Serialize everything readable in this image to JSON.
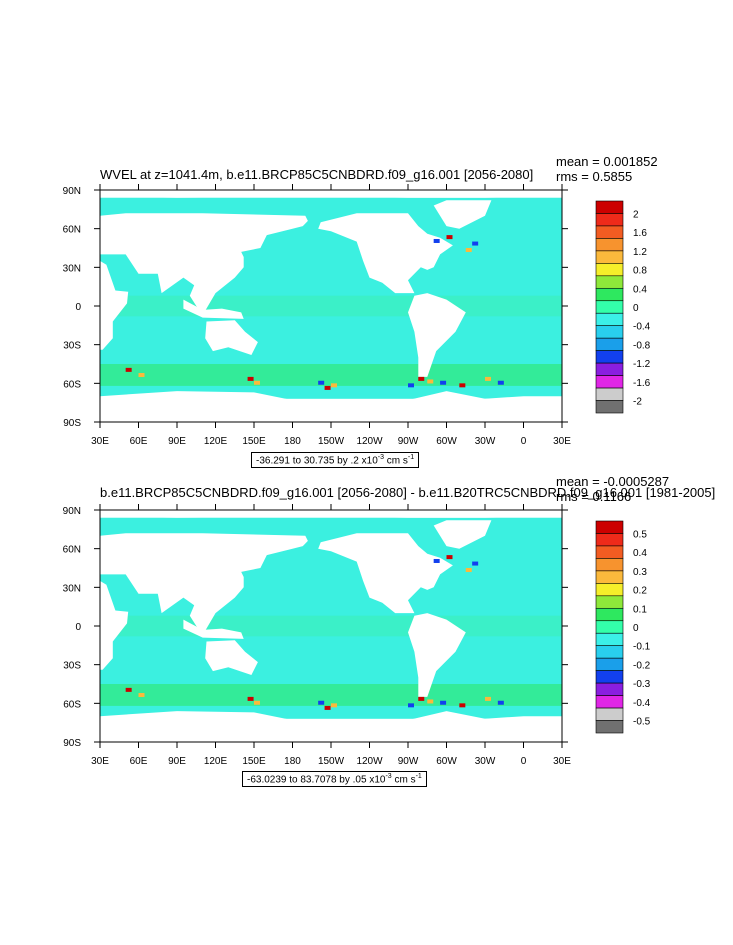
{
  "panels": [
    {
      "title": "WVEL at z=1041.4m, b.e11.BRCP85C5CNBDRD.f09_g16.001 [2056-2080]",
      "mean": "mean = 0.001852",
      "rms": "rms = 0.5855",
      "range_text": "-36.291 to 30.735 by .2 x10",
      "range_exp": "-3",
      "range_unit": " cm s",
      "range_unit_exp": "-1",
      "colorbar_labels": [
        "2",
        "1.6",
        "1.2",
        "0.8",
        "0.4",
        "0",
        "-0.4",
        "-0.8",
        "-1.2",
        "-1.6",
        "-2"
      ]
    },
    {
      "title": "b.e11.BRCP85C5CNBDRD.f09_g16.001 [2056-2080] - b.e11.B20TRC5CNBDRD.f09_g16.001 [1981-2005]",
      "mean": "mean = -0.0005287",
      "rms": "rms = 0.1166",
      "range_text": "-63.0239 to 83.7078 by .05 x10",
      "range_exp": "-3",
      "range_unit": " cm s",
      "range_unit_exp": "-1",
      "colorbar_labels": [
        "0.5",
        "0.4",
        "0.3",
        "0.2",
        "0.1",
        "0",
        "-0.1",
        "-0.2",
        "-0.3",
        "-0.4",
        "-0.5"
      ]
    }
  ],
  "axes": {
    "lat_labels": [
      "90N",
      "60N",
      "30N",
      "0",
      "30S",
      "60S",
      "90S"
    ],
    "lon_labels": [
      "30E",
      "60E",
      "90E",
      "120E",
      "150E",
      "180",
      "150W",
      "120W",
      "90W",
      "60W",
      "30W",
      "0",
      "30E"
    ]
  },
  "colors": {
    "colorbar": [
      "#cc0000",
      "#ee2a1a",
      "#f25c22",
      "#f7932e",
      "#fbb93c",
      "#f5ee2a",
      "#8ee83a",
      "#2ee85f",
      "#33ffaa",
      "#3bf0e8",
      "#29cfee",
      "#1a9fea",
      "#1240ee",
      "#8a1ee0",
      "#e026e6",
      "#cccccc",
      "#707070"
    ],
    "ocean": "#3bf0e0",
    "land": "#ffffff"
  }
}
